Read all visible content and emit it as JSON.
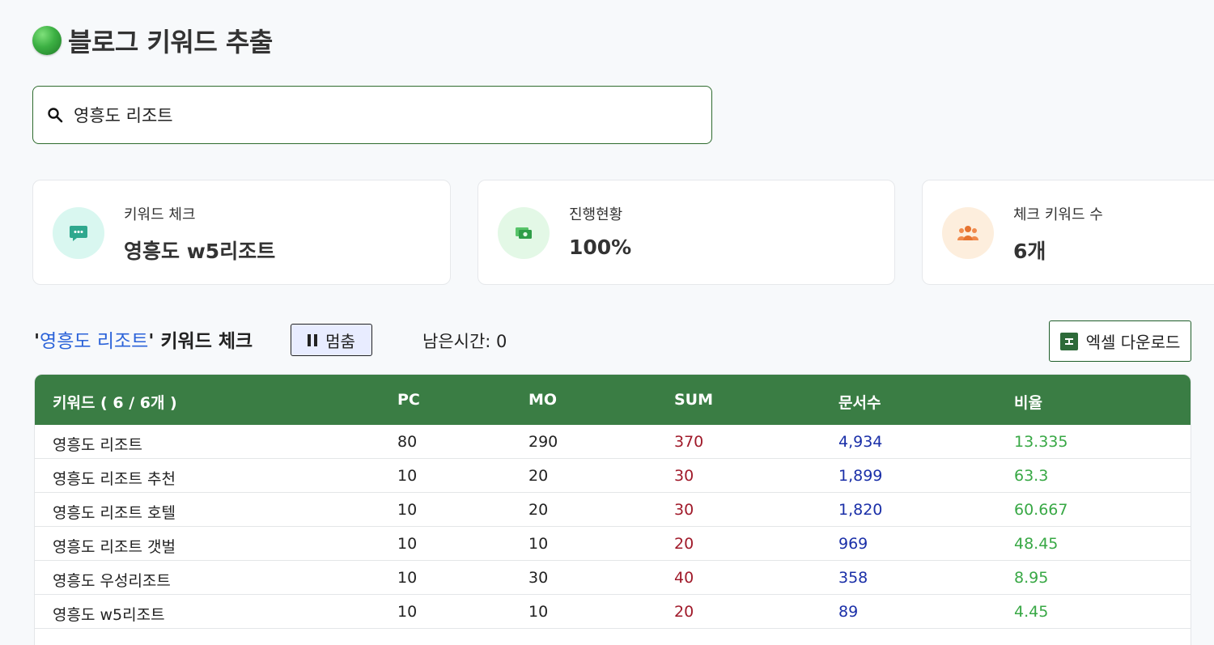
{
  "header": {
    "title": "블로그 키워드 추출"
  },
  "search": {
    "value": "영흥도 리조트"
  },
  "cards": [
    {
      "label": "키워드 체크",
      "value": "영흥도 w5리조트",
      "icon": "chat-bubble-icon"
    },
    {
      "label": "진행현황",
      "value": "100%",
      "icon": "money-icon"
    },
    {
      "label": "체크 키워드 수",
      "value": "6개",
      "icon": "group-icon"
    }
  ],
  "section": {
    "quote_open": "'",
    "keyword": "영흥도 리조트",
    "quote_close": "'",
    "suffix": " 키워드 체크",
    "pause_label": "멈춤",
    "remaining_label": "남은시간: 0",
    "excel_label": "엑셀 다운로드"
  },
  "table": {
    "headers": [
      "키워드 ( 6 / 6개 )",
      "PC",
      "MO",
      "SUM",
      "문서수",
      "비율"
    ],
    "rows": [
      {
        "keyword": "영흥도 리조트",
        "pc": "80",
        "mo": "290",
        "sum": "370",
        "docs": "4,934",
        "ratio": "13.335"
      },
      {
        "keyword": "영흥도 리조트 추천",
        "pc": "10",
        "mo": "20",
        "sum": "30",
        "docs": "1,899",
        "ratio": "63.3"
      },
      {
        "keyword": "영흥도 리조트 호텔",
        "pc": "10",
        "mo": "20",
        "sum": "30",
        "docs": "1,820",
        "ratio": "60.667"
      },
      {
        "keyword": "영흥도 리조트 갯벌",
        "pc": "10",
        "mo": "10",
        "sum": "20",
        "docs": "969",
        "ratio": "48.45"
      },
      {
        "keyword": "영흥도 우성리조트",
        "pc": "10",
        "mo": "30",
        "sum": "40",
        "docs": "358",
        "ratio": "8.95"
      },
      {
        "keyword": "영흥도 w5리조트",
        "pc": "10",
        "mo": "10",
        "sum": "20",
        "docs": "89",
        "ratio": "4.45"
      }
    ]
  },
  "colors": {
    "accent": "#3a7d44",
    "sum": "#a01a2a",
    "docs": "#1a2fa8",
    "ratio": "#38a845",
    "keyword_link": "#2b63d9"
  }
}
